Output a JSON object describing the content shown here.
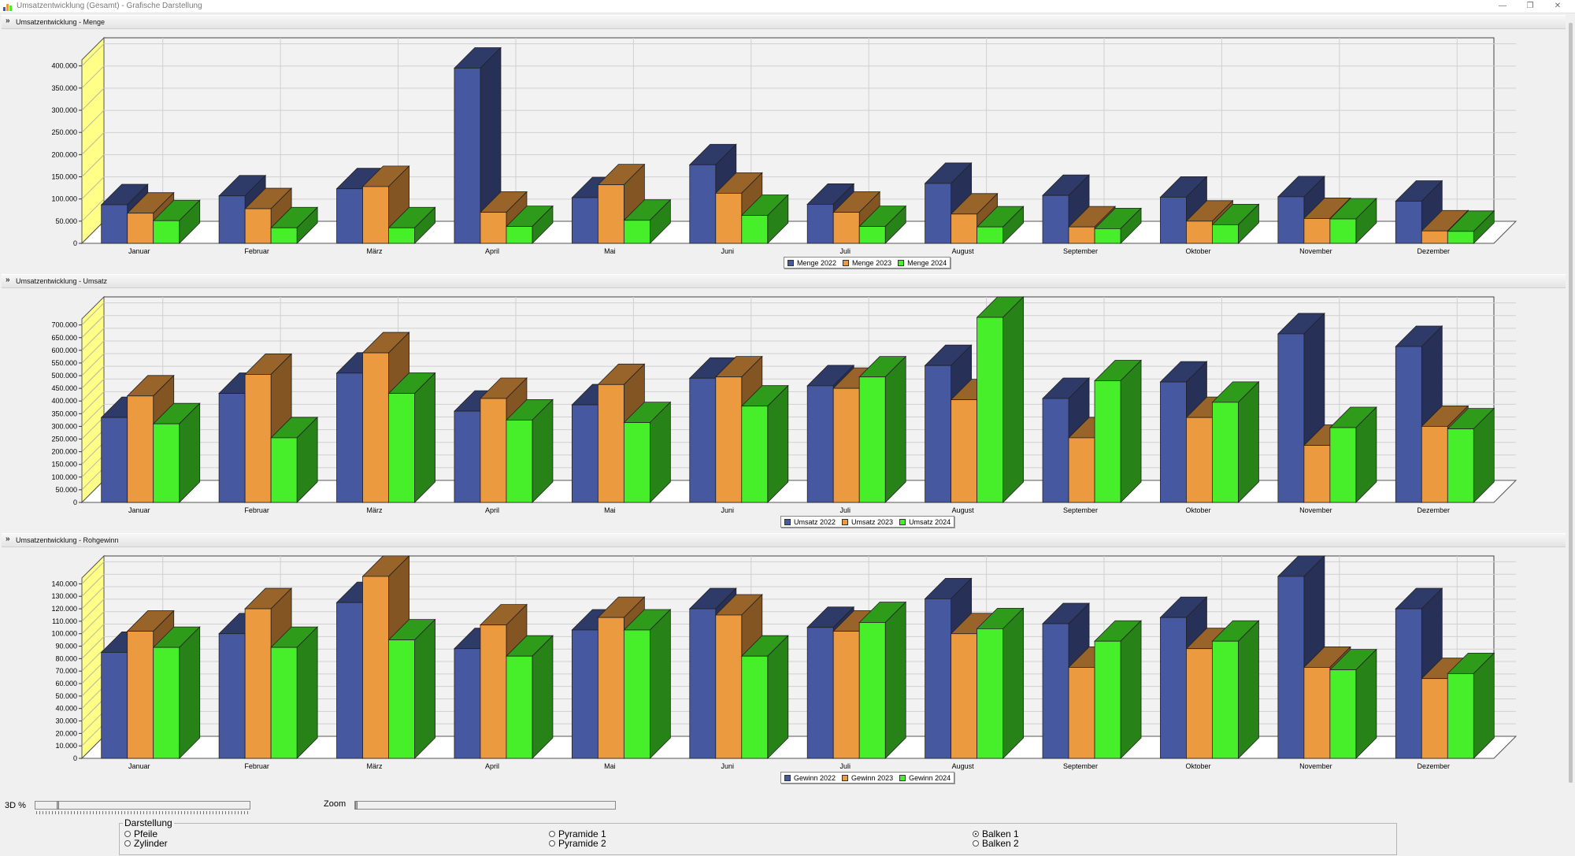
{
  "window": {
    "title": "Umsatzentwicklung (Gesamt) - Grafische Darstellung",
    "minimize_glyph": "—",
    "restore_glyph": "❐",
    "close_glyph": "✕",
    "icon": "chart-app-icon"
  },
  "colors": {
    "s2022": "#4659a0",
    "s2023": "#ec9a3f",
    "s2024": "#47ee2a",
    "wall": "#ffff88",
    "plot_back": "#f2f2f2",
    "grid": "#d0d0d0"
  },
  "panels": [
    {
      "title": "Umsatzentwicklung - Menge"
    },
    {
      "title": "Umsatzentwicklung - Umsatz"
    },
    {
      "title": "Umsatzentwicklung - Rohgewinn"
    }
  ],
  "chart_data": [
    {
      "type": "bar",
      "title": "Umsatzentwicklung - Menge",
      "view": "3d",
      "grid": true,
      "legend_position": "bottom-center",
      "categories": [
        "Januar",
        "Februar",
        "März",
        "April",
        "Mai",
        "Juni",
        "Juli",
        "August",
        "September",
        "Oktober",
        "November",
        "Dezember"
      ],
      "ylim": [
        0,
        400000
      ],
      "yticks": [
        "0",
        "50.000",
        "100.000",
        "150.000",
        "200.000",
        "250.000",
        "300.000",
        "350.000",
        "400.000"
      ],
      "series": [
        {
          "name": "Menge 2022",
          "values": [
            87000,
            107000,
            123000,
            395000,
            103000,
            177000,
            88000,
            135000,
            108000,
            104000,
            105000,
            95000
          ]
        },
        {
          "name": "Menge 2023",
          "values": [
            68000,
            78000,
            128000,
            70000,
            132000,
            113000,
            70000,
            66000,
            37000,
            50000,
            56000,
            28000
          ]
        },
        {
          "name": "Menge 2024",
          "values": [
            51000,
            35000,
            35000,
            38000,
            52000,
            63000,
            38000,
            37000,
            33000,
            42000,
            55000,
            27000
          ]
        }
      ]
    },
    {
      "type": "bar",
      "title": "Umsatzentwicklung - Umsatz",
      "view": "3d",
      "grid": true,
      "legend_position": "bottom-center",
      "categories": [
        "Januar",
        "Februar",
        "März",
        "April",
        "Mai",
        "Juni",
        "Juli",
        "August",
        "September",
        "Oktober",
        "November",
        "Dezember"
      ],
      "ylim": [
        0,
        700000
      ],
      "yticks": [
        "0",
        "50.000",
        "100.000",
        "150.000",
        "200.000",
        "250.000",
        "300.000",
        "350.000",
        "400.000",
        "450.000",
        "500.000",
        "550.000",
        "600.000",
        "650.000",
        "700.000"
      ],
      "series": [
        {
          "name": "Umsatz 2022",
          "values": [
            335000,
            430000,
            510000,
            360000,
            385000,
            490000,
            460000,
            540000,
            410000,
            475000,
            665000,
            615000
          ]
        },
        {
          "name": "Umsatz 2023",
          "values": [
            420000,
            505000,
            590000,
            410000,
            465000,
            495000,
            450000,
            405000,
            255000,
            335000,
            225000,
            300000
          ]
        },
        {
          "name": "Umsatz 2024",
          "values": [
            310000,
            255000,
            430000,
            325000,
            315000,
            380000,
            495000,
            730000,
            480000,
            395000,
            295000,
            290000
          ]
        }
      ]
    },
    {
      "type": "bar",
      "title": "Umsatzentwicklung - Rohgewinn",
      "view": "3d",
      "grid": true,
      "legend_position": "bottom-center",
      "categories": [
        "Januar",
        "Februar",
        "März",
        "April",
        "Mai",
        "Juni",
        "Juli",
        "August",
        "September",
        "Oktober",
        "November",
        "Dezember"
      ],
      "ylim": [
        0,
        140000
      ],
      "yticks": [
        "0",
        "10.000",
        "20.000",
        "30.000",
        "40.000",
        "50.000",
        "60.000",
        "70.000",
        "80.000",
        "90.000",
        "100.000",
        "110.000",
        "120.000",
        "130.000",
        "140.000"
      ],
      "series": [
        {
          "name": "Gewinn 2022",
          "values": [
            85000,
            100000,
            125000,
            88000,
            103000,
            120000,
            105000,
            128000,
            108000,
            113000,
            146000,
            120000
          ]
        },
        {
          "name": "Gewinn 2023",
          "values": [
            102000,
            120000,
            146000,
            107000,
            113000,
            115000,
            102000,
            100000,
            73000,
            88000,
            73000,
            64000
          ]
        },
        {
          "name": "Gewinn 2024",
          "values": [
            89000,
            89000,
            95000,
            82000,
            103000,
            82000,
            109000,
            104000,
            94000,
            94000,
            71000,
            68000
          ]
        }
      ]
    }
  ],
  "controls": {
    "depth_label": "3D %",
    "zoom_label": "Zoom",
    "depth_value": 0.1,
    "zoom_value": 0
  },
  "darstellung": {
    "title": "Darstellung",
    "options": [
      {
        "label": "Pfeile",
        "selected": false
      },
      {
        "label": "Zylinder",
        "selected": false
      },
      {
        "label": "Pyramide 1",
        "selected": false
      },
      {
        "label": "Pyramide 2",
        "selected": false
      },
      {
        "label": "Balken 1",
        "selected": true
      },
      {
        "label": "Balken 2",
        "selected": false
      }
    ]
  }
}
